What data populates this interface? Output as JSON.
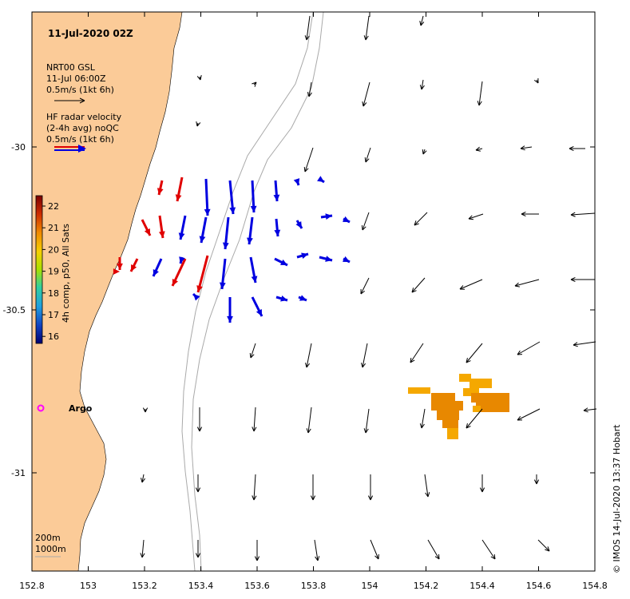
{
  "title": "11-Jul-2020 02Z",
  "legend": {
    "model_name": "NRT00 GSL",
    "model_time": "11-Jul 06:00Z",
    "model_scale": "0.5m/s (1kt 6h)",
    "radar_name": "HF radar velocity",
    "radar_avg": "(2-4h avg) noQC",
    "radar_scale": "0.5m/s (1kt 6h)"
  },
  "colorbar": {
    "label": "4h comp, p50, All Sats",
    "ticks": [
      "22",
      "21",
      "20",
      "19",
      "18",
      "17",
      "16"
    ]
  },
  "x_ticks": [
    "152.8",
    "153",
    "153.2",
    "153.4",
    "153.6",
    "153.8",
    "154",
    "154.2",
    "154.4",
    "154.6",
    "154.8"
  ],
  "y_ticks": [
    "-30",
    "-30.5",
    "-31"
  ],
  "argo_label": "Argo",
  "isobaths": [
    "200m",
    "1000m"
  ],
  "credit": "© IMOS 14-Jul-2020 13:37 Hobart",
  "colors": {
    "land": "#fbcb98",
    "model_arrow": "#000000",
    "radar_onshore": "#e00000",
    "radar_offshore": "#0000e0",
    "sst_warm": "#f5a800",
    "sst_hot": "#e88800",
    "argo": "#ff00ff",
    "contour": "#a9a9a9"
  }
}
